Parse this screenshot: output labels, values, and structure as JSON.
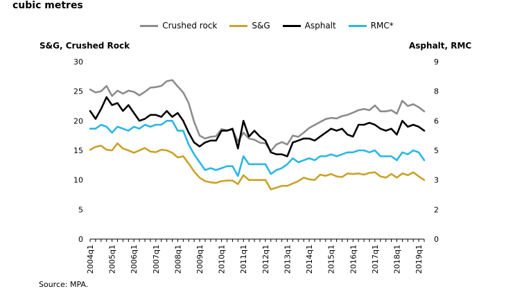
{
  "title": "cubic metres",
  "source": "Source: MPA.",
  "chart_data": {
    "type": "line",
    "left_axis_title": "S&G, Crushed Rock",
    "right_axis_title": "Asphalt, RMC",
    "ylim_left": [
      0,
      30
    ],
    "ylim_right": [
      0,
      9
    ],
    "yticks_left": [
      "0",
      "5",
      "10",
      "15",
      "20",
      "25",
      "30"
    ],
    "yticks_right": [
      "0",
      "2",
      "3",
      "5",
      "6",
      "8",
      "9"
    ],
    "x_start_index": 0,
    "x_tick_labels": [
      "2004q1",
      "2005q1",
      "2006q1",
      "2007q1",
      "2008q1",
      "2009q1",
      "2010q1",
      "2011q1",
      "2012q1",
      "2013q1",
      "2014q1",
      "2015q1",
      "2016q1",
      "2017q1",
      "2018q1",
      "2019q1"
    ],
    "series": [
      {
        "name": "Crushed rock",
        "axis": "left",
        "color": "#8c8c8c",
        "values": [
          25.3,
          24.8,
          25.0,
          25.9,
          24.2,
          25.1,
          24.6,
          25.1,
          24.9,
          24.3,
          24.9,
          25.6,
          25.7,
          25.9,
          26.7,
          26.9,
          25.8,
          24.8,
          23.0,
          19.8,
          17.5,
          17.0,
          17.3,
          17.4,
          18.6,
          18.4,
          18.5,
          16.5,
          18.0,
          17.0,
          16.8,
          16.3,
          16.2,
          14.9,
          16.0,
          16.4,
          16.0,
          17.5,
          17.3,
          18.0,
          18.8,
          19.3,
          19.8,
          20.3,
          20.5,
          20.4,
          20.8,
          21.0,
          21.4,
          21.8,
          22.0,
          21.8,
          22.6,
          21.6,
          21.6,
          21.8,
          21.2,
          23.4,
          22.5,
          22.8,
          22.3,
          21.6
        ]
      },
      {
        "name": "S&G",
        "axis": "left",
        "color": "#c9a227",
        "values": [
          15.1,
          15.6,
          15.8,
          15.1,
          15.0,
          16.2,
          15.3,
          15.0,
          14.6,
          15.0,
          15.4,
          14.8,
          14.7,
          15.1,
          15.0,
          14.6,
          13.8,
          14.0,
          12.8,
          11.4,
          10.4,
          9.8,
          9.6,
          9.5,
          9.8,
          9.9,
          9.9,
          9.3,
          10.8,
          10.0,
          10.0,
          10.0,
          10.0,
          8.4,
          8.7,
          9.0,
          9.0,
          9.4,
          9.8,
          10.4,
          10.1,
          10.0,
          10.9,
          10.7,
          11.0,
          10.6,
          10.5,
          11.1,
          11.0,
          11.1,
          10.9,
          11.2,
          11.3,
          10.6,
          10.4,
          11.0,
          10.4,
          11.1,
          10.8,
          11.3,
          10.6,
          10.0
        ]
      },
      {
        "name": "Asphalt",
        "axis": "right",
        "color": "#000000",
        "values": [
          6.5,
          6.1,
          6.6,
          7.2,
          6.8,
          6.9,
          6.5,
          6.8,
          6.4,
          6.0,
          6.1,
          6.3,
          6.3,
          6.2,
          6.5,
          6.2,
          6.4,
          6.0,
          5.4,
          4.9,
          4.7,
          4.9,
          5.0,
          5.0,
          5.5,
          5.5,
          5.6,
          4.6,
          6.0,
          5.2,
          5.5,
          5.2,
          5.0,
          4.4,
          4.3,
          4.3,
          4.2,
          4.9,
          5.0,
          5.1,
          5.1,
          5.0,
          5.2,
          5.4,
          5.6,
          5.5,
          5.6,
          5.3,
          5.2,
          5.8,
          5.8,
          5.9,
          5.8,
          5.6,
          5.5,
          5.6,
          5.3,
          6.0,
          5.7,
          5.8,
          5.7,
          5.5
        ]
      },
      {
        "name": "RMC*",
        "axis": "right",
        "color": "#29b6e8",
        "values": [
          5.6,
          5.6,
          5.8,
          5.7,
          5.4,
          5.7,
          5.6,
          5.5,
          5.7,
          5.6,
          5.8,
          5.7,
          5.8,
          5.8,
          6.0,
          6.0,
          5.5,
          5.5,
          4.8,
          4.3,
          3.9,
          3.5,
          3.6,
          3.5,
          3.6,
          3.7,
          3.7,
          3.2,
          4.2,
          3.8,
          3.8,
          3.8,
          3.8,
          3.3,
          3.5,
          3.6,
          3.8,
          4.1,
          3.9,
          4.0,
          4.1,
          4.0,
          4.2,
          4.2,
          4.3,
          4.2,
          4.3,
          4.4,
          4.4,
          4.5,
          4.5,
          4.4,
          4.5,
          4.2,
          4.2,
          4.2,
          4.0,
          4.4,
          4.3,
          4.5,
          4.4,
          4.0
        ]
      }
    ]
  }
}
